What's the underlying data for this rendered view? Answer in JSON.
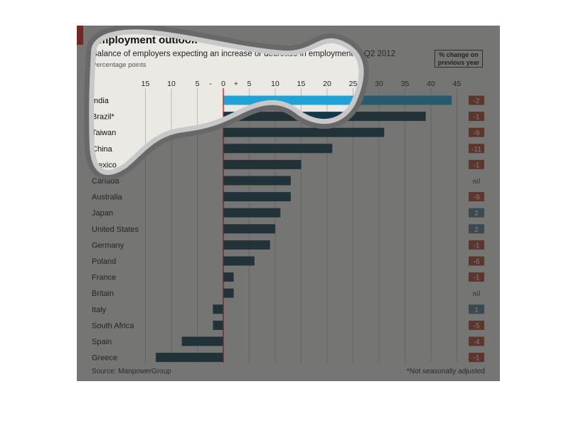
{
  "chart_data": {
    "type": "bar",
    "title": "Employment outlook",
    "subtitle": "Balance of employers expecting an increase or decrease in employment in Q2 2012",
    "unit_label": "Percentage points",
    "legend_box": [
      "% change on",
      "previous year"
    ],
    "source": "Source: ManpowerGroup",
    "footnote": "*Not seasonally adjusted",
    "xlim": [
      -15,
      45
    ],
    "ticks_negative": [
      "15",
      "10",
      "5"
    ],
    "ticks_positive": [
      "5",
      "10",
      "15",
      "20",
      "25",
      "30",
      "35",
      "40",
      "45"
    ],
    "zero_minus": "-",
    "zero_label": "0",
    "zero_plus": "+",
    "categories": [
      "India",
      "Brazil*",
      "Taiwan",
      "China",
      "Mexico",
      "Canada",
      "Australia",
      "Japan",
      "United States",
      "Germany",
      "Poland",
      "France",
      "Britain",
      "Italy",
      "South Africa",
      "Spain",
      "Greece"
    ],
    "values": [
      44,
      39,
      31,
      21,
      15,
      13,
      13,
      11,
      10,
      9,
      6,
      2,
      2,
      -2,
      -2,
      -8,
      -13
    ],
    "change": [
      "-2",
      "-1",
      "-9",
      "-11",
      "-1",
      "nil",
      "-9",
      "2",
      "2",
      "-1",
      "-6",
      "-1",
      "nil",
      "1",
      "-5",
      "-4",
      "-1"
    ],
    "highlight": "India",
    "colors": {
      "bar": "#0f3a4c",
      "highlight_bar": "#1fa3d6",
      "negative_change": "#a8452d",
      "positive_change": "#56778a",
      "background": "#ebe9e4",
      "accent": "#d8221d"
    }
  }
}
